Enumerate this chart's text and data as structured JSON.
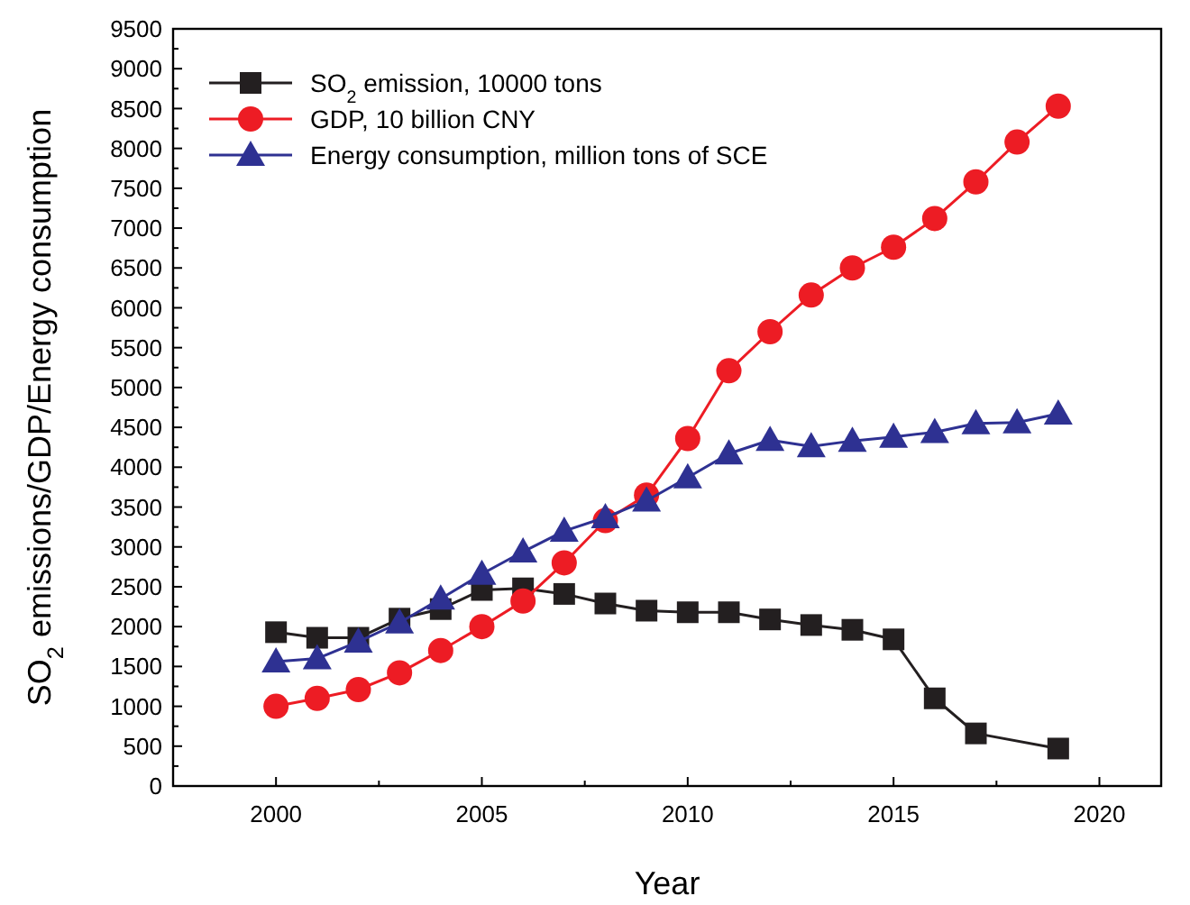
{
  "chart_data": {
    "type": "line",
    "xlabel": "Year",
    "ylabel": "SO$_{2}$ emissions/GDP/Energy consumption",
    "x": [
      2000,
      2001,
      2002,
      2003,
      2004,
      2005,
      2006,
      2007,
      2008,
      2009,
      2010,
      2011,
      2012,
      2013,
      2014,
      2015,
      2016,
      2017,
      2018,
      2019
    ],
    "series": [
      {
        "name": "SO$_{2}$ emission, 10000 tons",
        "color": "#231f20",
        "marker": "square",
        "values": [
          1930,
          1860,
          1860,
          2100,
          2220,
          2460,
          2480,
          2410,
          2290,
          2200,
          2180,
          2180,
          2090,
          2020,
          1960,
          1840,
          1100,
          660,
          null,
          470
        ]
      },
      {
        "name": "GDP, 10 billion CNY",
        "color": "#ed1c24",
        "marker": "circle",
        "values": [
          1000,
          1100,
          1210,
          1420,
          1700,
          2000,
          2320,
          2800,
          3330,
          3650,
          4360,
          5210,
          5700,
          6160,
          6500,
          6760,
          7120,
          7580,
          8080,
          8530
        ]
      },
      {
        "name": "Energy consumption, million tons of SCE",
        "color": "#2e3192",
        "marker": "triangle",
        "values": [
          1560,
          1600,
          1810,
          2050,
          2350,
          2660,
          2940,
          3200,
          3370,
          3580,
          3870,
          4170,
          4340,
          4260,
          4330,
          4380,
          4440,
          4550,
          4560,
          4670
        ]
      }
    ],
    "xlim": [
      1997.5,
      2021.5
    ],
    "xticks": [
      2000,
      2005,
      2010,
      2015,
      2020
    ],
    "ylim": [
      0,
      9500
    ],
    "yticks": [
      0,
      500,
      1000,
      1500,
      2000,
      2500,
      3000,
      3500,
      4000,
      4500,
      5000,
      5500,
      6000,
      6500,
      7000,
      7500,
      8000,
      8500,
      9000,
      9500
    ],
    "grid": false,
    "legend": "top left",
    "line_style": "solid"
  }
}
